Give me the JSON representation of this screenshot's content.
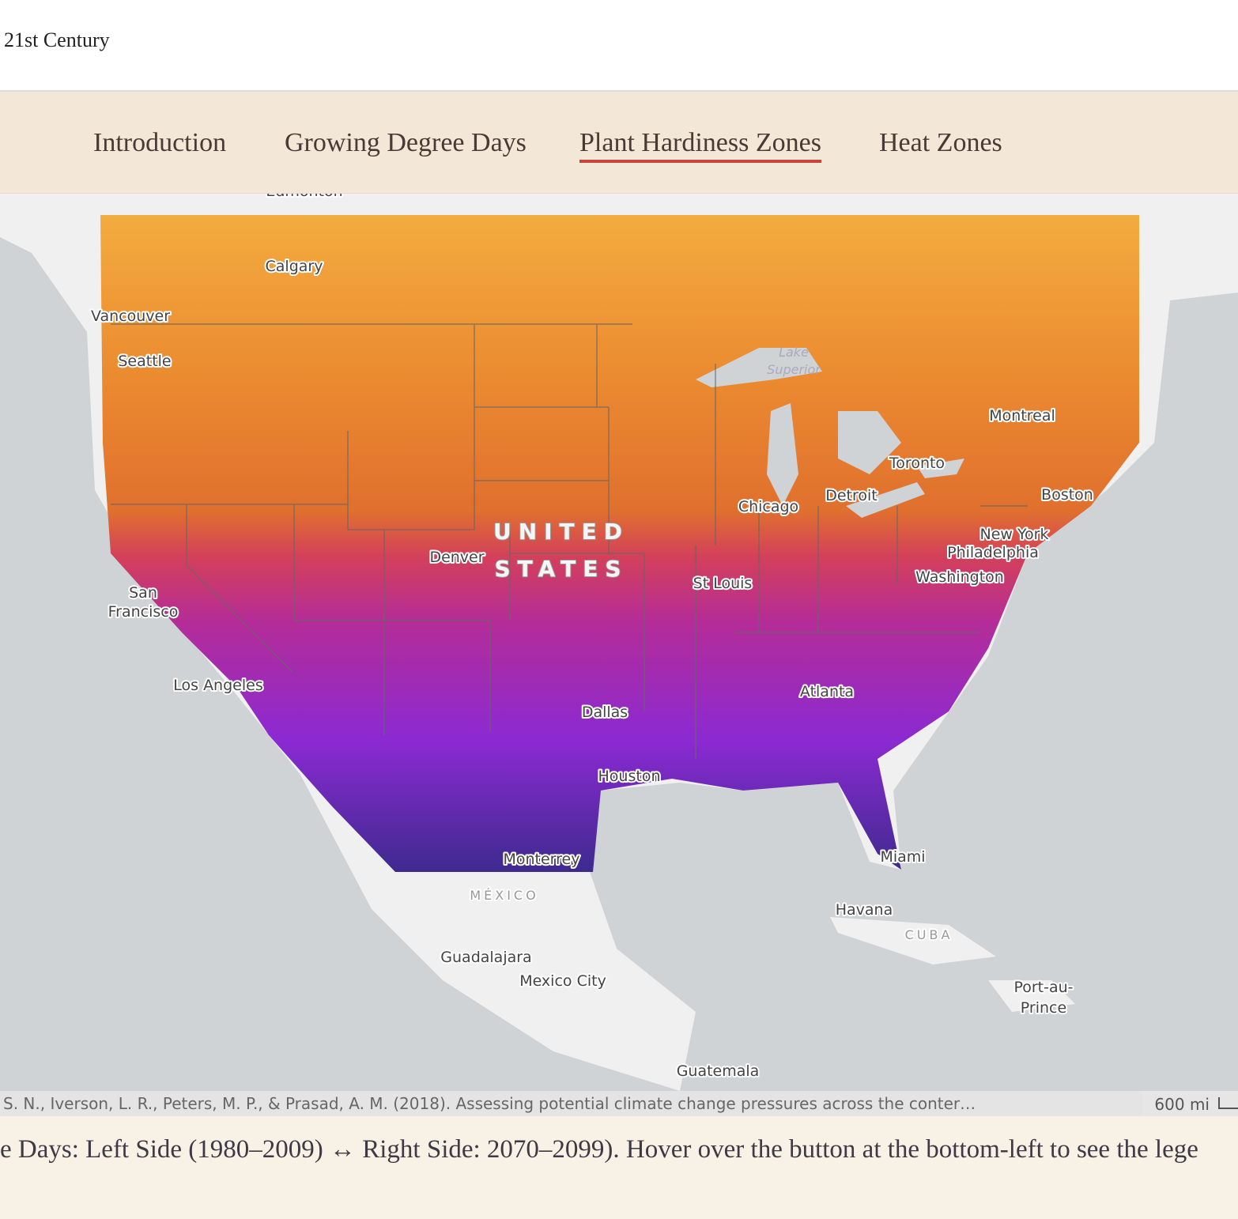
{
  "header": {
    "title": "21st Century"
  },
  "nav": {
    "tabs": [
      "Introduction",
      "Growing Degree Days",
      "Plant Hardiness Zones",
      "Heat Zones"
    ],
    "active": 2
  },
  "map": {
    "labels": [
      "Edmonton",
      "Calgary",
      "Vancouver",
      "Seattle",
      [
        "Lake",
        "Superior"
      ],
      "Montreal",
      "Toronto",
      "Boston",
      "Detroit",
      "Chicago",
      "New York",
      "Philadelphia",
      "Washington",
      [
        "UNITED",
        "STATES"
      ],
      "Denver",
      "St Louis",
      [
        "San",
        "Francisco"
      ],
      "Los Angeles",
      "Atlanta",
      "Dallas",
      "Houston",
      "Monterrey",
      "Miami",
      "MÉXICO",
      "Havana",
      "CUBA",
      "Guadalajara",
      "Mexico City",
      [
        "Port-au-",
        "Prince"
      ],
      "Guatemala"
    ],
    "attribution": "S. N., Iverson, L. R., Peters, M. P., & Prasad, A. M. (2018). Assessing potential climate change pressures across the conter…",
    "scale": "600 mi"
  },
  "caption": "e Days: Left Side (1980–2009) ↔ Right Side: 2070–2099). Hover over the button at the bottom-left to see the lege"
}
